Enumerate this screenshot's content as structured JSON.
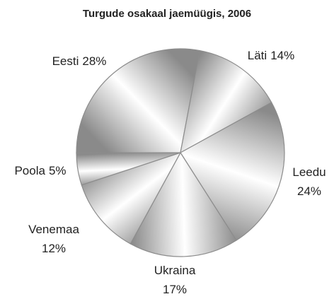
{
  "chart_data": {
    "type": "pie",
    "title": "Turgude osakaal jaemüügis, 2006",
    "categories": [
      "Eesti",
      "Läti",
      "Leedu",
      "Ukraina",
      "Venemaa",
      "Poola"
    ],
    "values": [
      28,
      14,
      24,
      17,
      12,
      5
    ],
    "value_labels": [
      "28%",
      "14%",
      "24%",
      "17%",
      "12%",
      "5%"
    ],
    "color": "#8a8a8a"
  }
}
